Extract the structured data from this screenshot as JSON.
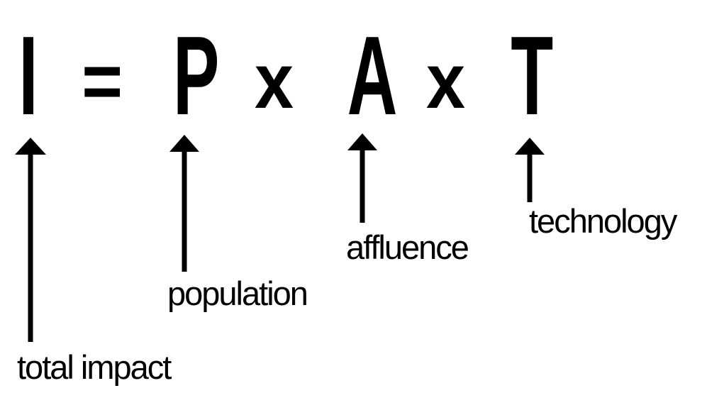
{
  "equation": {
    "impact_symbol": "I",
    "equals_symbol": "=",
    "population_symbol": "P",
    "times_symbol_1": "x",
    "affluence_symbol": "A",
    "times_symbol_2": "x",
    "technology_symbol": "T"
  },
  "labels": {
    "impact": "total impact",
    "population": "population",
    "affluence": "affluence",
    "technology": "technology"
  },
  "colors": {
    "ink": "#000000",
    "background": "#ffffff"
  }
}
